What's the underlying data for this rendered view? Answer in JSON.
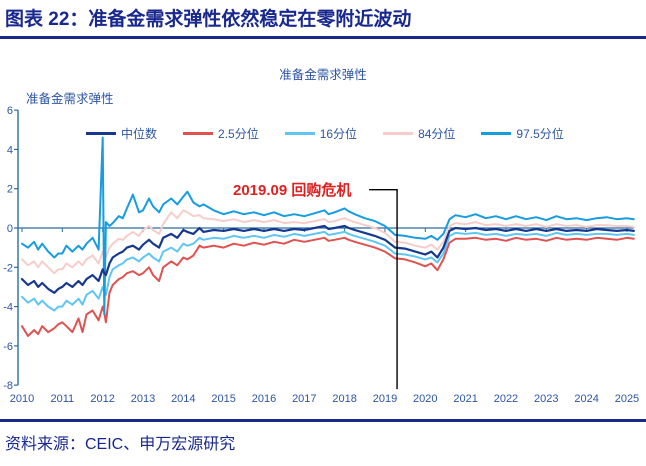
{
  "header": {
    "title": "图表 22：准备金需求弹性依然稳定在零附近波动"
  },
  "source": {
    "text": "资料来源：CEIC、申万宏源研究"
  },
  "colors": {
    "header": "#18288e",
    "label": "#2d55a5",
    "axis": "#2a6f9e",
    "annotation": "#e01f1f",
    "annotation_line": "#000000",
    "background": "#ffffff"
  },
  "chart_data": {
    "type": "line",
    "title": "准备金需求弹性",
    "y_axis_label": "准备金需求弹性",
    "xlabel": "",
    "ylabel": "",
    "ylim": [
      -8,
      6
    ],
    "y_ticks": [
      6,
      4,
      2,
      0,
      -2,
      -4,
      -6,
      -8
    ],
    "x_ticks": [
      2010,
      2011,
      2012,
      2013,
      2014,
      2015,
      2016,
      2017,
      2018,
      2019,
      2020,
      2021,
      2022,
      2023,
      2024,
      2025
    ],
    "xlim": [
      2010,
      2025.3
    ],
    "grid": false,
    "zero_line": true,
    "legend_position": "top-inside",
    "x": [
      2010.0,
      2010.15,
      2010.3,
      2010.4,
      2010.5,
      2010.65,
      2010.8,
      2010.9,
      2011.0,
      2011.1,
      2011.25,
      2011.4,
      2011.5,
      2011.6,
      2011.75,
      2011.9,
      2012.0,
      2012.04,
      2012.08,
      2012.17,
      2012.25,
      2012.4,
      2012.5,
      2012.6,
      2012.75,
      2012.9,
      2013.0,
      2013.15,
      2013.25,
      2013.4,
      2013.5,
      2013.7,
      2013.85,
      2014.0,
      2014.1,
      2014.25,
      2014.4,
      2014.5,
      2014.75,
      2015.0,
      2015.25,
      2015.5,
      2015.75,
      2016.0,
      2016.25,
      2016.5,
      2016.75,
      2017.0,
      2017.25,
      2017.5,
      2017.6,
      2017.75,
      2018.0,
      2018.1,
      2018.25,
      2018.5,
      2018.75,
      2019.0,
      2019.25,
      2019.5,
      2019.75,
      2020.0,
      2020.15,
      2020.3,
      2020.45,
      2020.6,
      2020.75,
      2021.0,
      2021.25,
      2021.5,
      2021.75,
      2022.0,
      2022.25,
      2022.5,
      2022.75,
      2023.0,
      2023.25,
      2023.5,
      2023.75,
      2024.0,
      2024.25,
      2024.5,
      2024.75,
      2025.0,
      2025.17
    ],
    "series": [
      {
        "key": "median",
        "name": "中位数",
        "color": "#16388e",
        "width": 2.2,
        "values": [
          -2.6,
          -2.9,
          -2.7,
          -3.0,
          -2.8,
          -3.1,
          -3.3,
          -3.1,
          -3.0,
          -2.8,
          -3.0,
          -2.7,
          -2.9,
          -2.6,
          -2.4,
          -2.7,
          -2.1,
          -2.3,
          -2.4,
          -1.8,
          -1.5,
          -1.3,
          -1.2,
          -1.0,
          -0.9,
          -1.1,
          -0.85,
          -0.6,
          -0.8,
          -1.0,
          -0.5,
          -0.3,
          -0.5,
          -0.1,
          -0.2,
          -0.3,
          0.0,
          -0.2,
          -0.1,
          -0.15,
          -0.05,
          -0.15,
          -0.05,
          -0.15,
          -0.05,
          -0.15,
          -0.05,
          -0.1,
          0.0,
          0.1,
          -0.05,
          0.0,
          0.1,
          0.0,
          -0.1,
          -0.25,
          -0.4,
          -0.6,
          -1.0,
          -1.05,
          -1.2,
          -1.35,
          -1.2,
          -1.5,
          -1.0,
          -0.15,
          0.0,
          -0.05,
          0.0,
          -0.1,
          -0.05,
          -0.15,
          -0.05,
          -0.15,
          -0.05,
          -0.15,
          -0.05,
          -0.15,
          -0.1,
          -0.15,
          -0.05,
          -0.1,
          -0.15,
          -0.1,
          -0.15
        ]
      },
      {
        "key": "p2_5",
        "name": "2.5分位",
        "color": "#e05250",
        "width": 2,
        "values": [
          -5.0,
          -5.5,
          -5.2,
          -5.4,
          -5.0,
          -5.3,
          -5.1,
          -4.9,
          -4.8,
          -5.0,
          -5.3,
          -4.6,
          -5.3,
          -4.4,
          -4.2,
          -4.7,
          -4.0,
          -4.3,
          -4.8,
          -3.3,
          -2.9,
          -2.6,
          -2.5,
          -2.3,
          -2.2,
          -2.4,
          -2.3,
          -2.0,
          -2.4,
          -2.7,
          -2.0,
          -1.7,
          -1.9,
          -1.5,
          -1.6,
          -1.4,
          -0.9,
          -1.0,
          -0.9,
          -1.0,
          -0.8,
          -0.9,
          -0.75,
          -0.85,
          -0.7,
          -0.8,
          -0.6,
          -0.7,
          -0.6,
          -0.5,
          -0.65,
          -0.6,
          -0.5,
          -0.6,
          -0.7,
          -0.85,
          -1.0,
          -1.2,
          -1.55,
          -1.6,
          -1.75,
          -1.95,
          -1.8,
          -2.15,
          -1.6,
          -0.75,
          -0.55,
          -0.55,
          -0.5,
          -0.6,
          -0.55,
          -0.65,
          -0.5,
          -0.6,
          -0.55,
          -0.65,
          -0.5,
          -0.6,
          -0.55,
          -0.6,
          -0.5,
          -0.55,
          -0.6,
          -0.5,
          -0.55
        ]
      },
      {
        "key": "p16",
        "name": "16分位",
        "color": "#5fc6f3",
        "width": 2,
        "values": [
          -3.5,
          -3.8,
          -3.6,
          -3.9,
          -3.7,
          -4.0,
          -4.2,
          -4.0,
          -4.0,
          -3.7,
          -3.9,
          -3.6,
          -3.9,
          -3.4,
          -3.2,
          -3.6,
          -3.0,
          -3.3,
          -3.4,
          -2.5,
          -2.1,
          -1.9,
          -1.8,
          -1.6,
          -1.5,
          -1.7,
          -1.5,
          -1.3,
          -1.5,
          -1.7,
          -1.2,
          -1.0,
          -1.2,
          -0.8,
          -0.9,
          -0.8,
          -0.5,
          -0.6,
          -0.5,
          -0.55,
          -0.4,
          -0.5,
          -0.4,
          -0.5,
          -0.35,
          -0.45,
          -0.3,
          -0.4,
          -0.3,
          -0.2,
          -0.35,
          -0.3,
          -0.2,
          -0.3,
          -0.4,
          -0.55,
          -0.7,
          -0.9,
          -1.3,
          -1.35,
          -1.45,
          -1.6,
          -1.5,
          -1.75,
          -1.3,
          -0.4,
          -0.25,
          -0.3,
          -0.25,
          -0.35,
          -0.3,
          -0.4,
          -0.3,
          -0.35,
          -0.3,
          -0.4,
          -0.25,
          -0.35,
          -0.3,
          -0.35,
          -0.3,
          -0.3,
          -0.35,
          -0.3,
          -0.35
        ]
      },
      {
        "key": "p84",
        "name": "84分位",
        "color": "#f6cdca",
        "width": 2,
        "values": [
          -1.6,
          -1.9,
          -1.7,
          -2.0,
          -1.7,
          -2.0,
          -2.3,
          -2.1,
          -2.1,
          -1.8,
          -2.0,
          -1.7,
          -1.9,
          -1.6,
          -1.4,
          -1.8,
          -1.2,
          -1.4,
          -1.5,
          -1.0,
          -0.8,
          -0.55,
          -0.6,
          -0.4,
          -0.2,
          -0.4,
          -0.1,
          0.1,
          -0.1,
          -0.3,
          0.2,
          0.8,
          0.5,
          0.9,
          0.8,
          0.6,
          0.65,
          0.5,
          0.45,
          0.35,
          0.45,
          0.3,
          0.4,
          0.3,
          0.4,
          0.25,
          0.3,
          0.25,
          0.35,
          0.45,
          0.3,
          0.35,
          0.5,
          0.4,
          0.3,
          0.15,
          0.0,
          -0.25,
          -0.7,
          -0.75,
          -0.9,
          -1.0,
          -0.85,
          -1.1,
          -0.7,
          0.1,
          0.25,
          0.2,
          0.3,
          0.15,
          0.2,
          0.1,
          0.2,
          0.1,
          0.2,
          0.05,
          0.2,
          0.1,
          0.15,
          0.05,
          0.15,
          0.15,
          0.1,
          0.1,
          0.05
        ]
      },
      {
        "key": "p97_5",
        "name": "97.5分位",
        "color": "#179ce0",
        "width": 2,
        "values": [
          -0.8,
          -1.0,
          -0.7,
          -1.1,
          -0.8,
          -1.2,
          -1.5,
          -1.3,
          -1.3,
          -0.9,
          -1.2,
          -0.9,
          -1.1,
          -0.8,
          -0.5,
          -1.1,
          4.6,
          -4.4,
          0.3,
          0.1,
          0.25,
          0.6,
          0.5,
          1.0,
          1.7,
          0.8,
          0.9,
          1.5,
          1.1,
          0.8,
          1.2,
          1.5,
          1.2,
          1.6,
          1.85,
          1.3,
          1.1,
          1.2,
          0.9,
          0.7,
          0.85,
          0.7,
          0.8,
          0.65,
          0.8,
          0.6,
          0.7,
          0.6,
          0.75,
          0.9,
          0.7,
          0.8,
          1.0,
          0.85,
          0.7,
          0.5,
          0.35,
          0.1,
          -0.35,
          -0.4,
          -0.5,
          -0.55,
          -0.4,
          -0.6,
          -0.3,
          0.45,
          0.65,
          0.55,
          0.7,
          0.5,
          0.6,
          0.45,
          0.6,
          0.45,
          0.55,
          0.4,
          0.6,
          0.45,
          0.5,
          0.4,
          0.5,
          0.55,
          0.45,
          0.5,
          0.45
        ]
      }
    ],
    "draw_order": [
      "p84",
      "p16",
      "p2_5",
      "p97_5",
      "median"
    ],
    "annotation": {
      "text": "2019.09 回购危机",
      "x_year": 2019.3,
      "line_top_value": 1.95,
      "line_bottom_value": -8.2
    }
  }
}
